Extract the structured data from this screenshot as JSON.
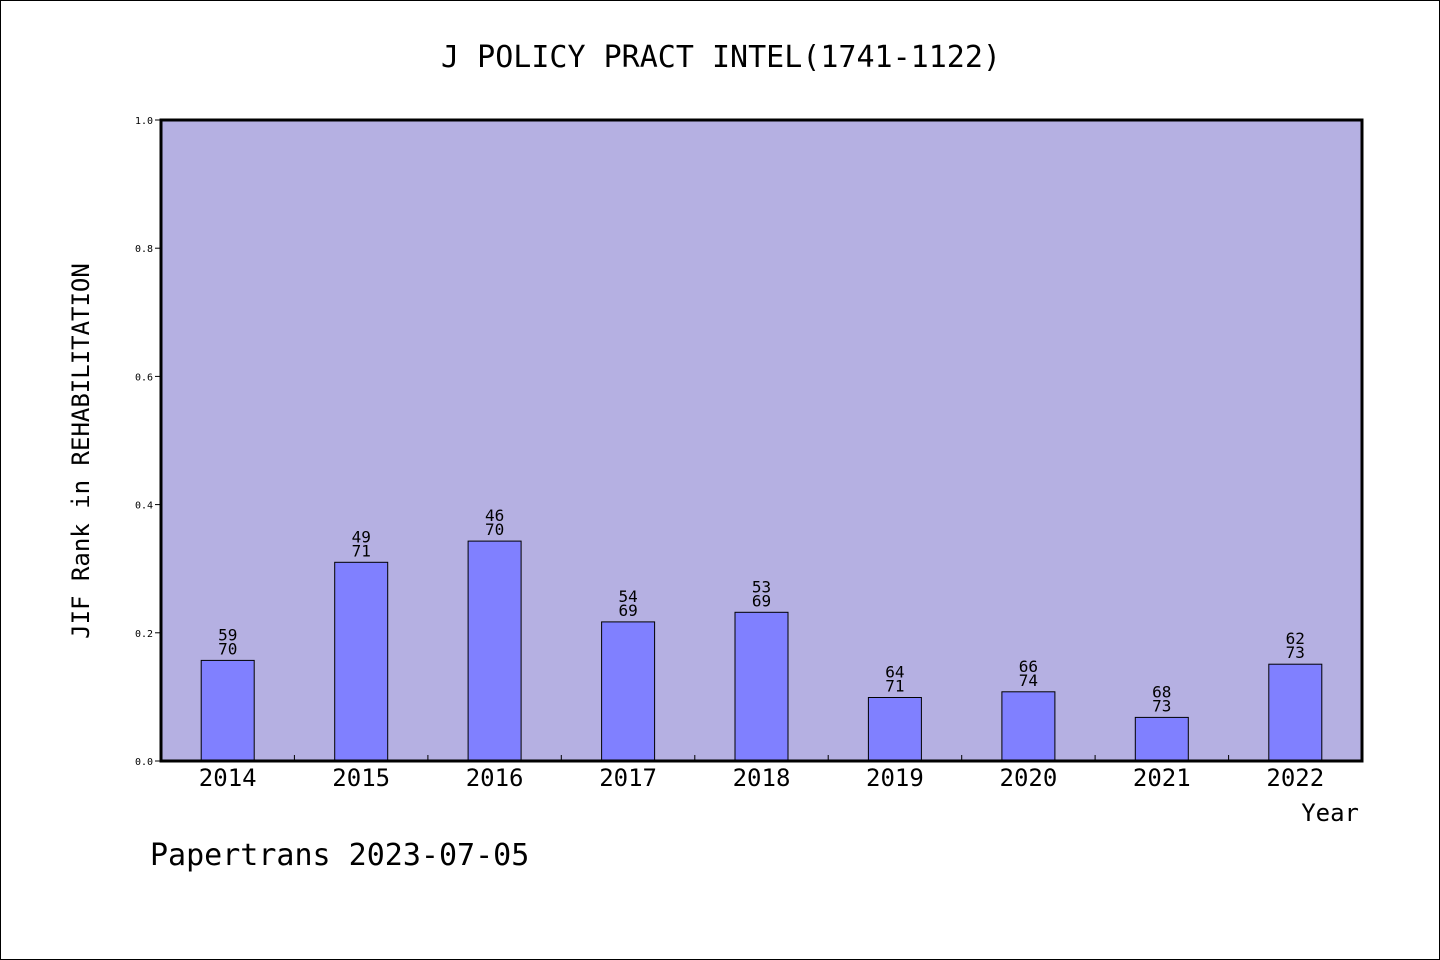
{
  "footer": "Papertrans 2023-07-05",
  "colors": {
    "plot_background": "#b5b0e2",
    "bar_fill": "#8080ff",
    "bar_stroke": "#000000",
    "axis": "#000000"
  },
  "chart_data": {
    "type": "bar",
    "title": "J POLICY PRACT INTEL(1741-1122)",
    "xlabel": "Year",
    "ylabel": "JIF Rank in REHABILITATION",
    "ylim": [
      0,
      1.0
    ],
    "y_ticks": [
      "0.0",
      "0.2",
      "0.4",
      "0.6",
      "0.8",
      "1.0"
    ],
    "y_tick_values": [
      0.0,
      0.2,
      0.4,
      0.6,
      0.8,
      1.0
    ],
    "grid": false,
    "categories": [
      "2014",
      "2015",
      "2016",
      "2017",
      "2018",
      "2019",
      "2020",
      "2021",
      "2022"
    ],
    "values": [
      0.157,
      0.31,
      0.343,
      0.217,
      0.232,
      0.099,
      0.108,
      0.068,
      0.151
    ],
    "labels": [
      {
        "rank": "59",
        "total": "70"
      },
      {
        "rank": "49",
        "total": "71"
      },
      {
        "rank": "46",
        "total": "70"
      },
      {
        "rank": "54",
        "total": "69"
      },
      {
        "rank": "53",
        "total": "69"
      },
      {
        "rank": "64",
        "total": "71"
      },
      {
        "rank": "66",
        "total": "74"
      },
      {
        "rank": "68",
        "total": "73"
      },
      {
        "rank": "62",
        "total": "73"
      }
    ]
  }
}
